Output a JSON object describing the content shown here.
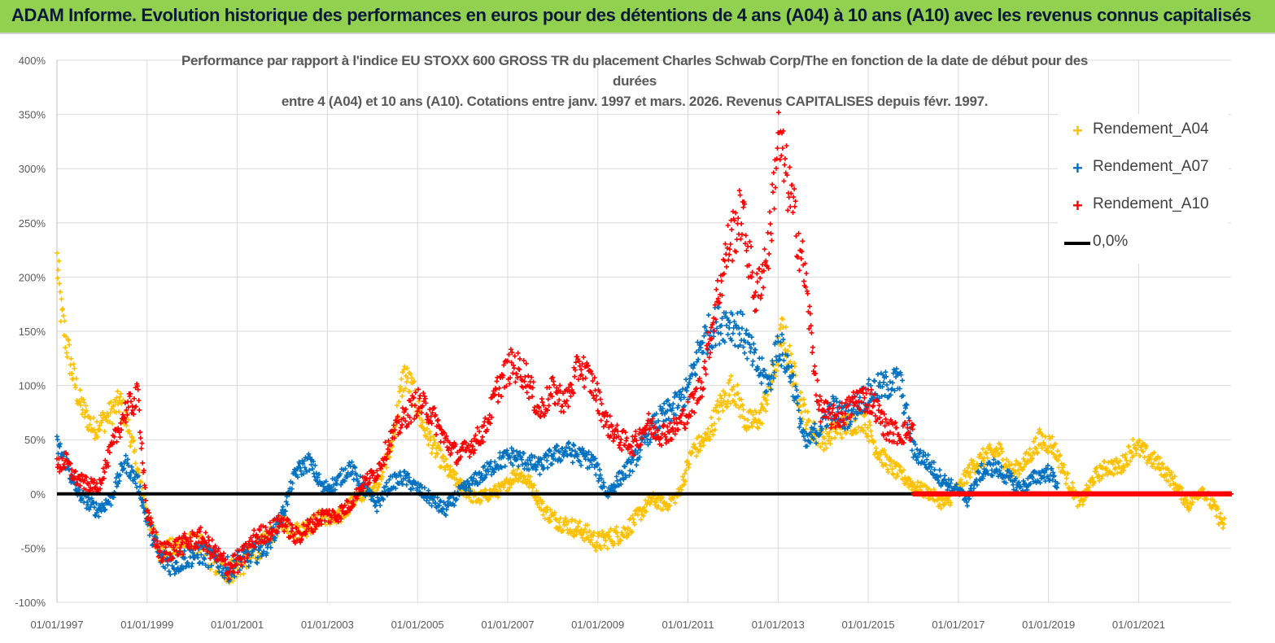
{
  "banner": {
    "title": "ADAM Informe. Evolution historique des performances en euros pour des détentions de 4 ans (A04) à 10 ans (A10) avec les revenus connus capitalisés"
  },
  "colors": {
    "banner_bg": "#92d050",
    "a04": "#ffc000",
    "a07": "#0070c0",
    "a10": "#ff0000",
    "zero": "#000000"
  },
  "chart_data": {
    "type": "scatter",
    "title_lines": [
      "Performance par rapport à l'indice EU STOXX 600 GROSS TR  du placement Charles Schwab Corp/The en fonction de la date de début pour des",
      "durées",
      "entre 4 (A04) et 10 ans (A10). Cotations entre janv. 1997 et mars. 2026. Revenus CAPITALISES depuis févr. 1997."
    ],
    "xlabel": "",
    "ylabel": "",
    "x_range": [
      1997.0,
      2023.05
    ],
    "ylim": [
      -100,
      400
    ],
    "y_ticks": [
      "-100%",
      "-50%",
      "0%",
      "50%",
      "100%",
      "150%",
      "200%",
      "250%",
      "300%",
      "350%",
      "400%"
    ],
    "y_tick_values": [
      -100,
      -50,
      0,
      50,
      100,
      150,
      200,
      250,
      300,
      350,
      400
    ],
    "x_ticks": [
      "01/01/1997",
      "01/01/1999",
      "01/01/2001",
      "01/01/2003",
      "01/01/2005",
      "01/01/2007",
      "01/01/2009",
      "01/01/2011",
      "01/01/2013",
      "01/01/2015",
      "01/01/2017",
      "01/01/2019",
      "01/01/2021"
    ],
    "x_tick_values": [
      1997,
      1999,
      2001,
      2003,
      2005,
      2007,
      2009,
      2011,
      2013,
      2015,
      2017,
      2019,
      2021
    ],
    "legend_position": "top-right",
    "series": [
      {
        "name": "Rendement_A04",
        "key": "a04",
        "x": [
          1997.0,
          1997.1,
          1997.3,
          1997.5,
          1997.8,
          1998.1,
          1998.4,
          1998.6,
          1998.8,
          1999.0,
          1999.3,
          1999.6,
          1999.9,
          2000.2,
          2000.5,
          2000.8,
          2001.1,
          2001.4,
          2001.7,
          2002.0,
          2002.3,
          2002.6,
          2002.9,
          2003.2,
          2003.5,
          2003.8,
          2004.1,
          2004.4,
          2004.7,
          2004.9,
          2005.1,
          2005.4,
          2005.7,
          2006.0,
          2006.3,
          2006.6,
          2006.9,
          2007.2,
          2007.5,
          2007.8,
          2008.1,
          2008.4,
          2008.7,
          2009.0,
          2009.3,
          2009.6,
          2009.9,
          2010.2,
          2010.5,
          2010.8,
          2011.1,
          2011.4,
          2011.7,
          2012.0,
          2012.3,
          2012.6,
          2012.9,
          2013.1,
          2013.4,
          2013.7,
          2014.0,
          2014.3,
          2014.6,
          2014.9,
          2015.2,
          2015.5,
          2015.8,
          2016.1,
          2016.4,
          2016.7,
          2017.0,
          2017.3,
          2017.6,
          2017.9,
          2018.2,
          2018.5,
          2018.8,
          2019.1,
          2019.4,
          2019.7,
          2020.0,
          2020.3,
          2020.6,
          2020.9,
          2021.2,
          2021.5,
          2021.8,
          2022.1,
          2022.4,
          2022.7,
          2022.9
        ],
        "y": [
          215,
          165,
          120,
          85,
          60,
          70,
          85,
          60,
          20,
          -20,
          -55,
          -50,
          -45,
          -48,
          -65,
          -72,
          -65,
          -55,
          -40,
          -25,
          -35,
          -30,
          -20,
          -25,
          -10,
          0,
          10,
          40,
          110,
          95,
          65,
          40,
          20,
          5,
          -5,
          0,
          5,
          20,
          10,
          -15,
          -25,
          -30,
          -35,
          -45,
          -40,
          -35,
          -20,
          -5,
          -10,
          0,
          40,
          50,
          80,
          100,
          65,
          70,
          110,
          150,
          100,
          60,
          50,
          60,
          65,
          70,
          40,
          25,
          15,
          5,
          0,
          -10,
          5,
          25,
          35,
          40,
          20,
          30,
          50,
          45,
          15,
          -10,
          15,
          25,
          25,
          45,
          35,
          25,
          10,
          -10,
          5,
          -15,
          -30
        ]
      },
      {
        "name": "Rendement_A07",
        "key": "a07",
        "x": [
          1997.0,
          1997.2,
          1997.4,
          1997.6,
          1997.9,
          1998.2,
          1998.5,
          1998.8,
          1999.0,
          1999.3,
          1999.6,
          1999.9,
          2000.2,
          2000.5,
          2000.8,
          2001.1,
          2001.4,
          2001.7,
          2002.0,
          2002.3,
          2002.6,
          2002.9,
          2003.2,
          2003.5,
          2003.8,
          2004.1,
          2004.4,
          2004.7,
          2005.0,
          2005.3,
          2005.6,
          2005.9,
          2006.2,
          2006.5,
          2006.8,
          2007.1,
          2007.4,
          2007.7,
          2008.0,
          2008.3,
          2008.6,
          2008.9,
          2009.2,
          2009.5,
          2009.8,
          2010.1,
          2010.4,
          2010.7,
          2011.0,
          2011.3,
          2011.6,
          2011.9,
          2012.2,
          2012.5,
          2012.8,
          2013.0,
          2013.3,
          2013.6,
          2013.9,
          2014.2,
          2014.5,
          2014.8,
          2015.1,
          2015.4,
          2015.7,
          2016.0,
          2016.3,
          2016.6,
          2016.9,
          2017.2,
          2017.5,
          2017.8,
          2018.1,
          2018.4,
          2018.7,
          2019.0,
          2019.2
        ],
        "y": [
          45,
          30,
          5,
          -5,
          -15,
          -5,
          30,
          10,
          -25,
          -60,
          -65,
          -58,
          -55,
          -60,
          -70,
          -60,
          -55,
          -45,
          -20,
          20,
          30,
          5,
          10,
          25,
          5,
          -10,
          10,
          15,
          5,
          -5,
          -15,
          0,
          10,
          20,
          30,
          35,
          30,
          25,
          35,
          40,
          35,
          30,
          0,
          15,
          30,
          55,
          70,
          80,
          95,
          140,
          155,
          160,
          150,
          120,
          100,
          140,
          110,
          45,
          60,
          80,
          70,
          85,
          95,
          100,
          105,
          40,
          30,
          15,
          5,
          -5,
          20,
          25,
          15,
          5,
          15,
          20,
          10
        ]
      },
      {
        "name": "Rendement_A10",
        "key": "a10",
        "x": [
          1997.0,
          1997.2,
          1997.4,
          1997.6,
          1997.9,
          1998.2,
          1998.5,
          1998.8,
          1999.0,
          1999.3,
          1999.6,
          1999.9,
          2000.2,
          2000.5,
          2000.8,
          2001.1,
          2001.4,
          2001.7,
          2002.0,
          2002.3,
          2002.6,
          2002.9,
          2003.2,
          2003.5,
          2003.8,
          2004.1,
          2004.4,
          2004.7,
          2005.0,
          2005.3,
          2005.6,
          2005.9,
          2006.2,
          2006.5,
          2006.8,
          2007.1,
          2007.4,
          2007.7,
          2008.0,
          2008.3,
          2008.6,
          2008.9,
          2009.2,
          2009.5,
          2009.8,
          2010.1,
          2010.4,
          2010.7,
          2011.0,
          2011.3,
          2011.6,
          2011.9,
          2012.2,
          2012.5,
          2012.8,
          2013.0,
          2013.3,
          2013.6,
          2013.9,
          2014.2,
          2014.5,
          2014.8,
          2015.1,
          2015.4,
          2015.7,
          2016.0
        ],
        "y": [
          25,
          30,
          15,
          10,
          5,
          40,
          75,
          90,
          -20,
          -55,
          -50,
          -45,
          -40,
          -55,
          -68,
          -60,
          -40,
          -35,
          -25,
          -40,
          -30,
          -20,
          -20,
          -10,
          10,
          20,
          50,
          70,
          85,
          75,
          50,
          35,
          45,
          60,
          100,
          120,
          110,
          75,
          95,
          85,
          120,
          100,
          65,
          50,
          45,
          65,
          55,
          60,
          75,
          100,
          170,
          230,
          260,
          180,
          230,
          330,
          270,
          200,
          80,
          70,
          75,
          90,
          85,
          60,
          55,
          60
        ]
      },
      {
        "name": "0,0%",
        "key": "zero",
        "x": [
          1997.0,
          2023.05
        ],
        "y": [
          0,
          0
        ]
      }
    ],
    "a10_tail": {
      "x_start": 2016.0,
      "x_end": 2023.05,
      "value": 0
    }
  }
}
